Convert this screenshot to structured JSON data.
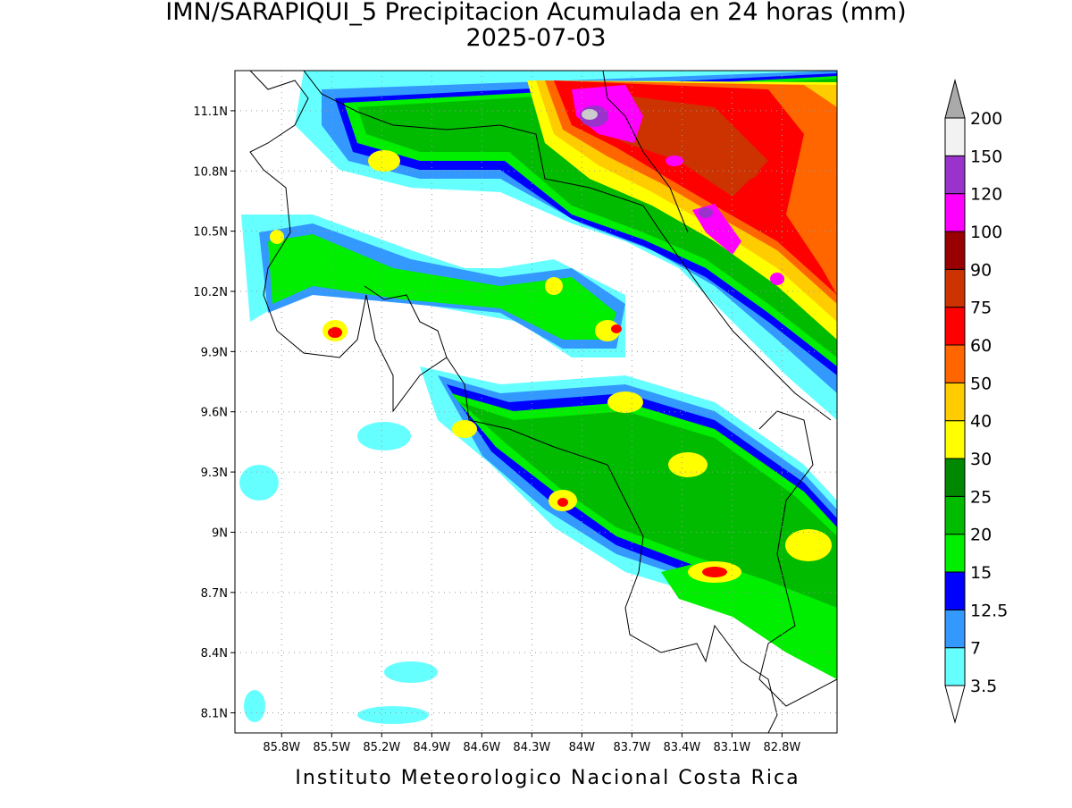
{
  "title": "IMN/SARAPIQUI_5 Precipitacion Acumulada en 24 horas (mm)",
  "date": "2025-07-03",
  "credit": "Instituto Meteorologico Nacional Costa Rica",
  "map": {
    "lon_lim": [
      -86.08,
      -82.47
    ],
    "lat_lim": [
      8.0,
      11.3
    ],
    "grid": true,
    "lon_ticks": [
      {
        "value": -85.8,
        "label": "85.8W"
      },
      {
        "value": -85.5,
        "label": "85.5W"
      },
      {
        "value": -85.2,
        "label": "85.2W"
      },
      {
        "value": -84.9,
        "label": "84.9W"
      },
      {
        "value": -84.6,
        "label": "84.6W"
      },
      {
        "value": -84.3,
        "label": "84.3W"
      },
      {
        "value": -84.0,
        "label": "84W"
      },
      {
        "value": -83.7,
        "label": "83.7W"
      },
      {
        "value": -83.4,
        "label": "83.4W"
      },
      {
        "value": -83.1,
        "label": "83.1W"
      },
      {
        "value": -82.8,
        "label": "82.8W"
      }
    ],
    "lat_ticks": [
      {
        "value": 8.1,
        "label": "8.1N"
      },
      {
        "value": 8.4,
        "label": "8.4N"
      },
      {
        "value": 8.7,
        "label": "8.7N"
      },
      {
        "value": 9.0,
        "label": "9N"
      },
      {
        "value": 9.3,
        "label": "9.3N"
      },
      {
        "value": 9.6,
        "label": "9.6N"
      },
      {
        "value": 9.9,
        "label": "9.9N"
      },
      {
        "value": 10.2,
        "label": "10.2N"
      },
      {
        "value": 10.5,
        "label": "10.5N"
      },
      {
        "value": 10.8,
        "label": "10.8N"
      },
      {
        "value": 11.1,
        "label": "11.1N"
      }
    ]
  },
  "colorbar": {
    "levels": [
      3.5,
      7,
      12.5,
      15,
      20,
      25,
      30,
      40,
      50,
      60,
      75,
      90,
      100,
      120,
      150,
      200
    ],
    "level_labels": [
      "3.5",
      "7",
      "12.5",
      "15",
      "20",
      "25",
      "30",
      "40",
      "50",
      "60",
      "75",
      "90",
      "100",
      "120",
      "150",
      "200"
    ],
    "colors": [
      "#66ffff",
      "#3399ff",
      "#0000ff",
      "#00ee00",
      "#00bb00",
      "#008800",
      "#ffff00",
      "#ffcc00",
      "#ff6600",
      "#ff0000",
      "#cc3300",
      "#990000",
      "#ff00ff",
      "#9933cc",
      "#f2f2f2"
    ],
    "under_color": "#ffffff",
    "over_color": "#aaaaaa"
  }
}
